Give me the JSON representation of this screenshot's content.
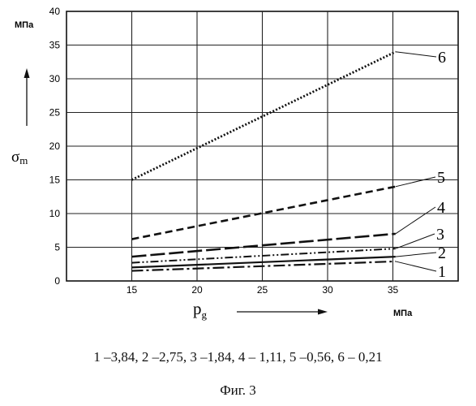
{
  "chart_data": {
    "type": "line",
    "xlabel_main": "p",
    "xlabel_sub": "g",
    "xunit": "МПа",
    "ylabel_main": "σ",
    "ylabel_sub": "m",
    "yunit": "МПа",
    "xlim": [
      10,
      40
    ],
    "ylim": [
      0,
      40
    ],
    "x_ticks": [
      15,
      20,
      25,
      30,
      35
    ],
    "y_ticks": [
      0,
      5,
      10,
      15,
      20,
      25,
      30,
      35,
      40
    ],
    "grid": true,
    "series": [
      {
        "name": "1",
        "style": "dashdot-long",
        "x": [
          15,
          35.2
        ],
        "y": [
          1.5,
          2.9
        ]
      },
      {
        "name": "2",
        "style": "solid",
        "x": [
          15,
          35.2
        ],
        "y": [
          2.0,
          3.6
        ]
      },
      {
        "name": "3",
        "style": "dashdotdot",
        "x": [
          15,
          35.2
        ],
        "y": [
          2.7,
          4.8
        ]
      },
      {
        "name": "4",
        "style": "longdash",
        "x": [
          15,
          35.2
        ],
        "y": [
          3.6,
          7.0
        ]
      },
      {
        "name": "5",
        "style": "dash",
        "x": [
          15,
          35.2
        ],
        "y": [
          6.2,
          14.0
        ]
      },
      {
        "name": "6",
        "style": "dotted",
        "x": [
          15,
          35.2
        ],
        "y": [
          15.0,
          34.0
        ]
      }
    ]
  },
  "legend_note": "1 –3,84, 2 –2,75, 3 –1,84, 4 – 1,11, 5 –0,56, 6 – 0,21",
  "figure_label": "Фиг. 3"
}
